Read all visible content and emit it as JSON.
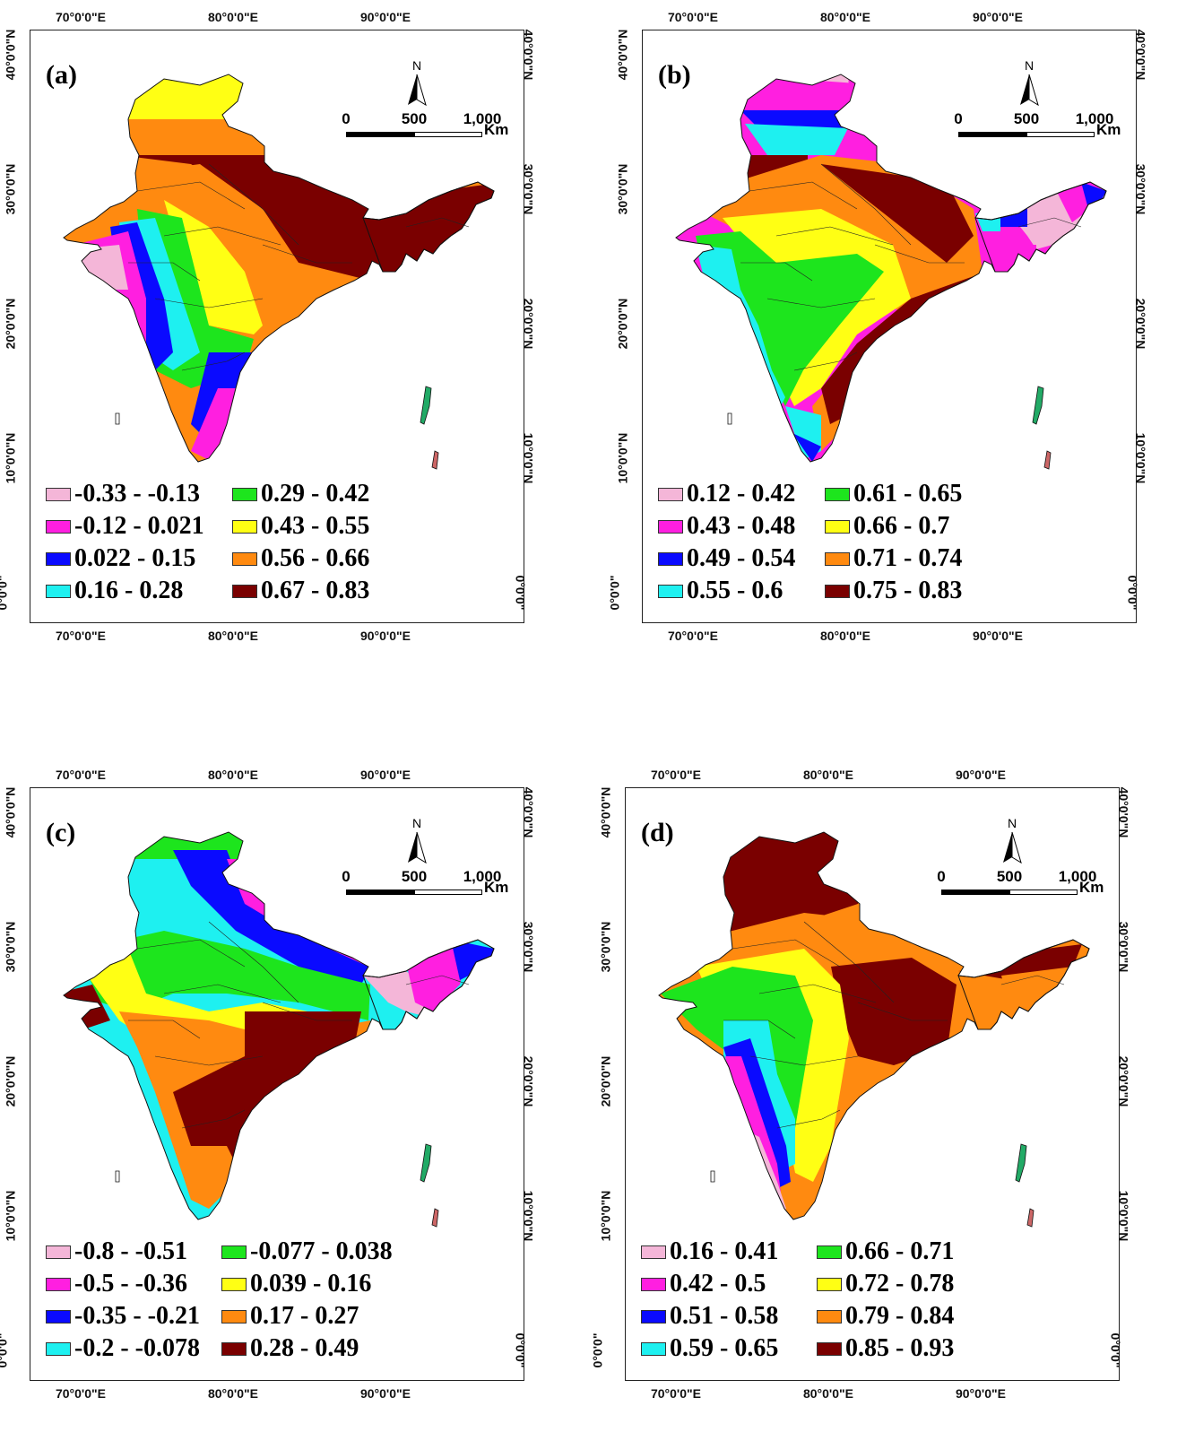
{
  "figure": {
    "colors": {
      "c1": "#f4b6d8",
      "c2": "#ff1fe0",
      "c3": "#0a0aff",
      "c4": "#1ef0f0",
      "c5": "#1de51d",
      "c6": "#ffff14",
      "c7": "#ff8a10",
      "c8": "#7a0000"
    },
    "axis_labels": {
      "lon": [
        "70°0'0\"E",
        "80°0'0\"E",
        "90°0'0\"E"
      ],
      "lat": [
        "40°0'0\"N",
        "30°0'0\"N",
        "20°0'0\"N",
        "10°0'0\"N",
        "0°0'0\""
      ]
    },
    "scale": {
      "ticks": [
        "0",
        "500",
        "1,000"
      ],
      "unit": "Km"
    },
    "north_letter": "N",
    "panels": [
      {
        "label": "(a)",
        "legend": [
          {
            "label": "-0.33 - -0.13",
            "color_key": "c1"
          },
          {
            "label": "-0.12 - 0.021",
            "color_key": "c2"
          },
          {
            "label": "0.022 - 0.15",
            "color_key": "c3"
          },
          {
            "label": "0.16 - 0.28",
            "color_key": "c4"
          },
          {
            "label": "0.29 - 0.42",
            "color_key": "c5"
          },
          {
            "label": "0.43 - 0.55",
            "color_key": "c6"
          },
          {
            "label": "0.56 - 0.66",
            "color_key": "c7"
          },
          {
            "label": "0.67 - 0.83",
            "color_key": "c8"
          }
        ]
      },
      {
        "label": "(b)",
        "legend": [
          {
            "label": "0.12 - 0.42",
            "color_key": "c1"
          },
          {
            "label": "0.43 - 0.48",
            "color_key": "c2"
          },
          {
            "label": "0.49 - 0.54",
            "color_key": "c3"
          },
          {
            "label": "0.55 - 0.6",
            "color_key": "c4"
          },
          {
            "label": "0.61 - 0.65",
            "color_key": "c5"
          },
          {
            "label": "0.66 - 0.7",
            "color_key": "c6"
          },
          {
            "label": "0.71 - 0.74",
            "color_key": "c7"
          },
          {
            "label": "0.75 - 0.83",
            "color_key": "c8"
          }
        ]
      },
      {
        "label": "(c)",
        "legend": [
          {
            "label": "-0.8 - -0.51",
            "color_key": "c1"
          },
          {
            "label": "-0.5 - -0.36",
            "color_key": "c2"
          },
          {
            "label": "-0.35 - -0.21",
            "color_key": "c3"
          },
          {
            "label": "-0.2 - -0.078",
            "color_key": "c4"
          },
          {
            "label": "-0.077 - 0.038",
            "color_key": "c5"
          },
          {
            "label": "0.039 - 0.16",
            "color_key": "c6"
          },
          {
            "label": "0.17 - 0.27",
            "color_key": "c7"
          },
          {
            "label": "0.28 - 0.49",
            "color_key": "c8"
          }
        ]
      },
      {
        "label": "(d)",
        "legend": [
          {
            "label": "0.16 - 0.41",
            "color_key": "c1"
          },
          {
            "label": "0.42 - 0.5",
            "color_key": "c2"
          },
          {
            "label": "0.51 - 0.58",
            "color_key": "c3"
          },
          {
            "label": "0.59 - 0.65",
            "color_key": "c4"
          },
          {
            "label": "0.66 - 0.71",
            "color_key": "c5"
          },
          {
            "label": "0.72 - 0.78",
            "color_key": "c6"
          },
          {
            "label": "0.79 - 0.84",
            "color_key": "c7"
          },
          {
            "label": "0.85 - 0.93",
            "color_key": "c8"
          }
        ]
      }
    ]
  }
}
